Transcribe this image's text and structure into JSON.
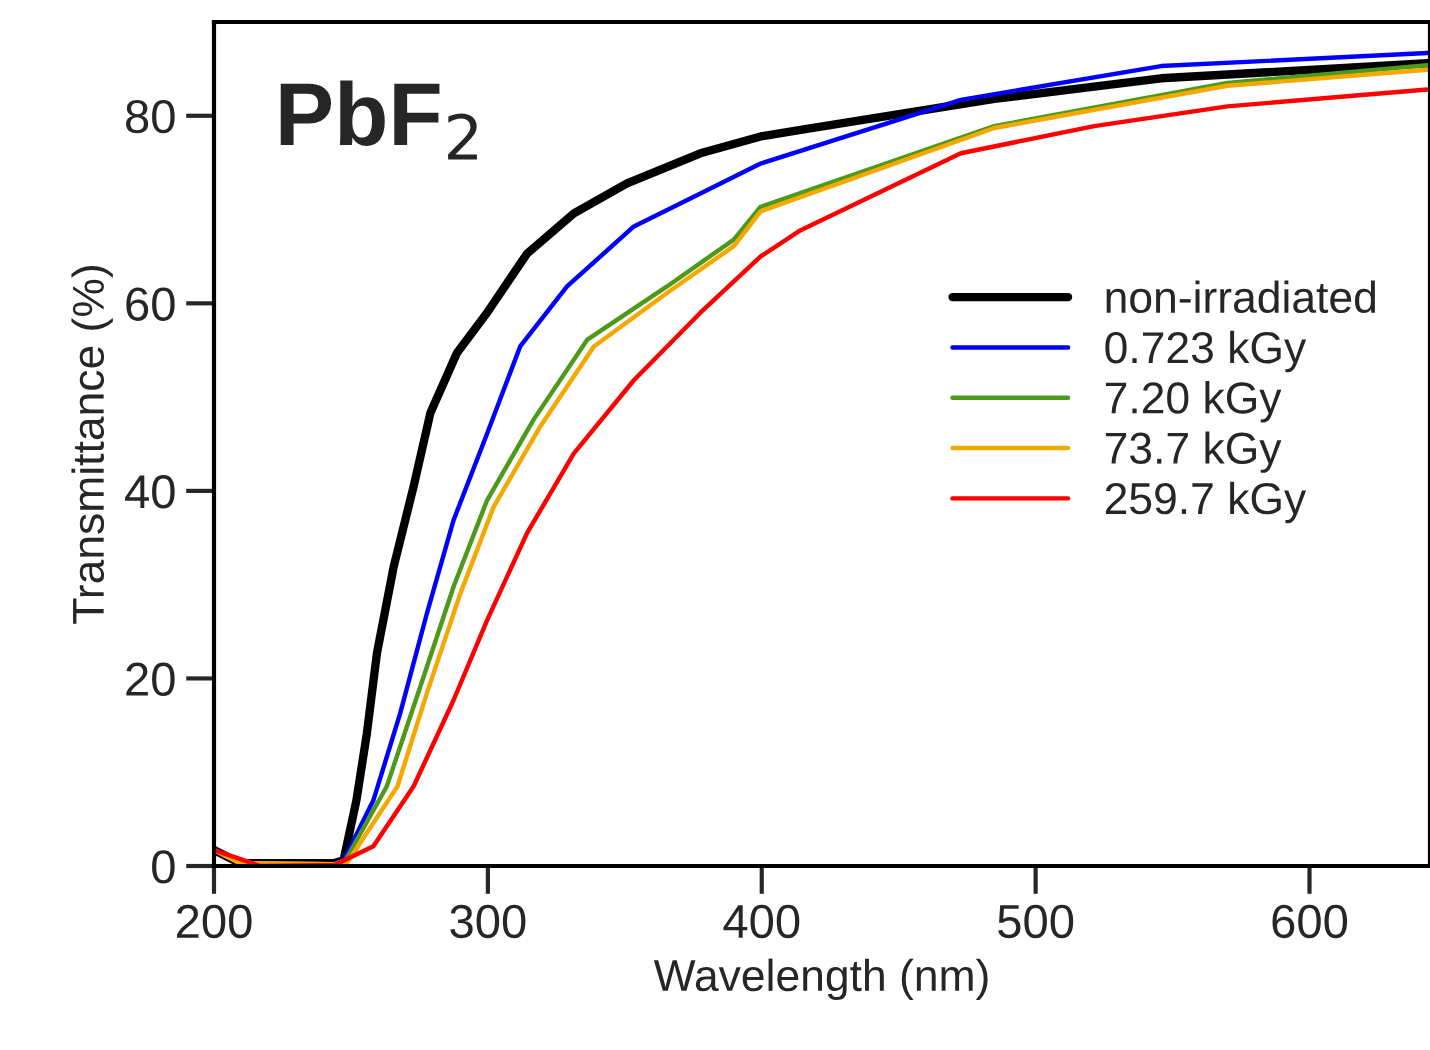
{
  "chart_data": {
    "type": "line",
    "xlabel": "Wavelength (nm)",
    "ylabel": "Transmittance (%)",
    "annotations": [
      "PbF$_{2}$"
    ],
    "xlim": [
      200,
      644
    ],
    "xticks": [
      200,
      300,
      400,
      500,
      600
    ],
    "ylim": [
      0,
      90
    ],
    "yticks": [
      0,
      20,
      40,
      60,
      80
    ],
    "grid": false,
    "legend": "right",
    "marker": "none",
    "line_style": "solid",
    "series": [
      {
        "name": "non-irradiated",
        "color": "#000000",
        "x": [
          200,
          209.5,
          243.6,
          247.3,
          252,
          255.8,
          259.5,
          265.6,
          272.9,
          279,
          288.7,
          299.7,
          314.3,
          331.4,
          350.8,
          377.6,
          399.6,
          414.2,
          484.9,
          545.8,
          643
        ],
        "values": [
          1.7,
          0.3,
          0.3,
          0.6,
          7,
          14.1,
          22.7,
          31.9,
          40.5,
          48.3,
          54.7,
          59,
          65.3,
          69.6,
          72.8,
          76,
          77.8,
          78.5,
          81.8,
          84,
          85.6
        ]
      },
      {
        "name": "0.723 kGy",
        "color": "#0000ff",
        "x": [
          243.6,
          247.3,
          258.2,
          268,
          277.7,
          287.5,
          299.7,
          311.8,
          328.9,
          353.3,
          377.6,
          399.6,
          472.7,
          545.8,
          643
        ],
        "values": [
          0.2,
          0.6,
          7,
          16.3,
          26.9,
          36.9,
          46.1,
          55.4,
          61.8,
          68.2,
          71.7,
          74.9,
          81.7,
          85.3,
          86.7
        ]
      },
      {
        "name": "7.20 kGy",
        "color": "#4d9a1a",
        "x": [
          200,
          209.5,
          244,
          248,
          263.1,
          275.3,
          287.5,
          299.7,
          316.7,
          336.2,
          365.4,
          389.8,
          399.6,
          484.9,
          570,
          643
        ],
        "values": [
          1.7,
          0.3,
          0.2,
          0.6,
          8.5,
          19.1,
          29.8,
          39,
          47.6,
          56.1,
          61.8,
          66.8,
          70.3,
          78.9,
          83.5,
          85.4
        ]
      },
      {
        "name": "73.7 kGy",
        "color": "#f5a800",
        "x": [
          200,
          209.5,
          244,
          248.5,
          267,
          277.7,
          290,
          302.1,
          319.2,
          338.7,
          365.4,
          389.8,
          399.6,
          484.9,
          570,
          643
        ],
        "values": [
          1.7,
          0.3,
          0.2,
          0.3,
          8.5,
          18.4,
          29.1,
          38.3,
          46.9,
          55.4,
          61.1,
          66.1,
          69.8,
          78.7,
          83.2,
          84.9
        ]
      },
      {
        "name": "259.7 kGy",
        "color": "#ff0000",
        "x": [
          200,
          217,
          244,
          258.2,
          272.9,
          287.5,
          299.7,
          314.3,
          331.4,
          353.3,
          377.6,
          399.6,
          414.2,
          472.7,
          521.4,
          570,
          643
        ],
        "values": [
          1.7,
          0,
          0.1,
          2.1,
          8.5,
          17.7,
          26.2,
          35.5,
          44,
          51.8,
          59,
          65,
          67.8,
          76,
          78.9,
          81,
          82.8
        ]
      }
    ]
  }
}
